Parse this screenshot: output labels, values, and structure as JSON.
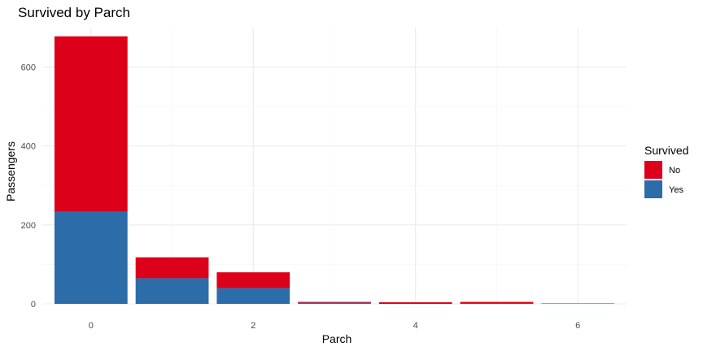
{
  "chart_data": {
    "type": "bar",
    "stacked": true,
    "title": "Survived by Parch",
    "xlabel": "Parch",
    "ylabel": "Passengers",
    "x": [
      0,
      1,
      2,
      3,
      4,
      5,
      6
    ],
    "x_ticks": [
      0,
      2,
      4,
      6
    ],
    "xlim": [
      -0.6,
      6.6
    ],
    "ylim": [
      0,
      700
    ],
    "y_ticks": [
      0,
      200,
      400,
      600
    ],
    "grid": true,
    "legend": {
      "title": "Survived",
      "placement": "right"
    },
    "series": [
      {
        "name": "No",
        "color": "#dc001a",
        "values": [
          445,
          53,
          40,
          2,
          4,
          4,
          1
        ]
      },
      {
        "name": "Yes",
        "color": "#2c6ca9",
        "values": [
          233,
          65,
          40,
          3,
          0,
          1,
          0
        ]
      }
    ]
  }
}
